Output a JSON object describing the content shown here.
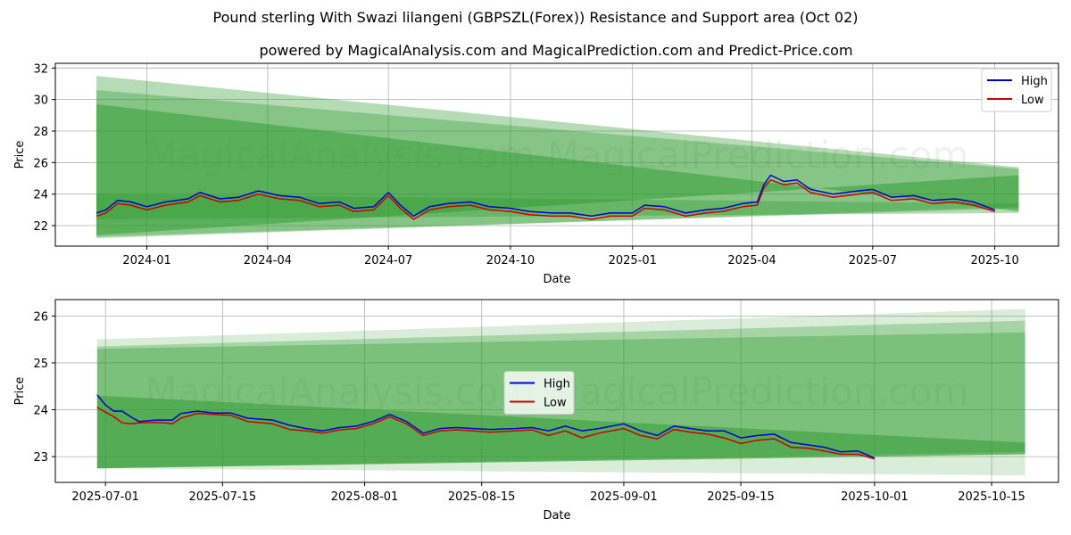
{
  "title_line1": "Pound sterling With Swazi lilangeni (GBPSZL(Forex)) Resistance and Support area (Oct 02)",
  "title_line2": "powered by MagicalAnalysis.com and MagicalPrediction.com and Predict-Price.com",
  "watermark": "MagicalAnalysis.com   MagicalPrediction.com",
  "colors": {
    "high": "#0000cc",
    "low": "#cc0000",
    "band": "#2e9a2e"
  },
  "chart_data": [
    {
      "type": "line",
      "xlabel": "Date",
      "ylabel": "Price",
      "x_ticks": [
        "2024-01",
        "2024-04",
        "2024-07",
        "2024-10",
        "2025-01",
        "2025-04",
        "2025-07",
        "2025-10"
      ],
      "y_ticks": [
        "22",
        "24",
        "26",
        "28",
        "30",
        "32"
      ],
      "ylim": [
        20.7,
        32.3
      ],
      "legend": [
        "High",
        "Low"
      ],
      "legend_position": "top-right",
      "bands": [
        {
          "x_start": "2023-11-24",
          "x_end": "2025-10-19",
          "upper_start": 31.5,
          "upper_end": 25.7,
          "lower_start": 21.2,
          "lower_end": 23.2,
          "opacity": 0.35
        },
        {
          "x_start": "2023-11-24",
          "x_end": "2025-10-19",
          "upper_start": 30.6,
          "upper_end": 25.6,
          "lower_start": 21.3,
          "lower_end": 23.1,
          "opacity": 0.35
        },
        {
          "x_start": "2023-11-24",
          "x_end": "2025-10-19",
          "upper_start": 29.7,
          "upper_end": 22.9,
          "lower_start": 21.4,
          "lower_end": 25.2,
          "opacity": 0.5
        },
        {
          "x_start": "2023-11-24",
          "x_end": "2025-10-19",
          "upper_start": 24.0,
          "upper_end": 23.4,
          "lower_start": 22.4,
          "lower_end": 22.8,
          "opacity": 0.35
        }
      ],
      "series": [
        {
          "name": "High",
          "points": [
            [
              "2023-11-24",
              22.8
            ],
            [
              "2023-12-01",
              23.0
            ],
            [
              "2023-12-10",
              23.6
            ],
            [
              "2023-12-20",
              23.5
            ],
            [
              "2024-01-01",
              23.2
            ],
            [
              "2024-01-15",
              23.5
            ],
            [
              "2024-02-01",
              23.7
            ],
            [
              "2024-02-10",
              24.1
            ],
            [
              "2024-02-25",
              23.7
            ],
            [
              "2024-03-10",
              23.8
            ],
            [
              "2024-03-25",
              24.2
            ],
            [
              "2024-04-10",
              23.9
            ],
            [
              "2024-04-25",
              23.8
            ],
            [
              "2024-05-10",
              23.4
            ],
            [
              "2024-05-25",
              23.5
            ],
            [
              "2024-06-05",
              23.1
            ],
            [
              "2024-06-20",
              23.2
            ],
            [
              "2024-07-01",
              24.1
            ],
            [
              "2024-07-10",
              23.3
            ],
            [
              "2024-07-20",
              22.6
            ],
            [
              "2024-08-01",
              23.2
            ],
            [
              "2024-08-15",
              23.4
            ],
            [
              "2024-09-01",
              23.5
            ],
            [
              "2024-09-15",
              23.2
            ],
            [
              "2024-10-01",
              23.1
            ],
            [
              "2024-10-15",
              22.9
            ],
            [
              "2024-11-01",
              22.8
            ],
            [
              "2024-11-15",
              22.8
            ],
            [
              "2024-12-01",
              22.6
            ],
            [
              "2024-12-15",
              22.8
            ],
            [
              "2025-01-01",
              22.8
            ],
            [
              "2025-01-10",
              23.3
            ],
            [
              "2025-01-25",
              23.2
            ],
            [
              "2025-02-10",
              22.8
            ],
            [
              "2025-02-25",
              23.0
            ],
            [
              "2025-03-10",
              23.1
            ],
            [
              "2025-03-25",
              23.4
            ],
            [
              "2025-04-05",
              23.5
            ],
            [
              "2025-04-10",
              24.6
            ],
            [
              "2025-04-15",
              25.2
            ],
            [
              "2025-04-25",
              24.8
            ],
            [
              "2025-05-05",
              24.9
            ],
            [
              "2025-05-15",
              24.3
            ],
            [
              "2025-06-01",
              24.0
            ],
            [
              "2025-06-20",
              24.2
            ],
            [
              "2025-07-01",
              24.3
            ],
            [
              "2025-07-15",
              23.8
            ],
            [
              "2025-08-01",
              23.9
            ],
            [
              "2025-08-15",
              23.6
            ],
            [
              "2025-09-01",
              23.7
            ],
            [
              "2025-09-15",
              23.5
            ],
            [
              "2025-10-01",
              23.0
            ]
          ]
        },
        {
          "name": "Low",
          "points": [
            [
              "2023-11-24",
              22.6
            ],
            [
              "2023-12-01",
              22.8
            ],
            [
              "2023-12-10",
              23.4
            ],
            [
              "2023-12-20",
              23.3
            ],
            [
              "2024-01-01",
              23.0
            ],
            [
              "2024-01-15",
              23.3
            ],
            [
              "2024-02-01",
              23.5
            ],
            [
              "2024-02-10",
              23.9
            ],
            [
              "2024-02-25",
              23.5
            ],
            [
              "2024-03-10",
              23.6
            ],
            [
              "2024-03-25",
              24.0
            ],
            [
              "2024-04-10",
              23.7
            ],
            [
              "2024-04-25",
              23.6
            ],
            [
              "2024-05-10",
              23.2
            ],
            [
              "2024-05-25",
              23.3
            ],
            [
              "2024-06-05",
              22.9
            ],
            [
              "2024-06-20",
              23.0
            ],
            [
              "2024-07-01",
              23.9
            ],
            [
              "2024-07-10",
              23.1
            ],
            [
              "2024-07-20",
              22.4
            ],
            [
              "2024-08-01",
              23.0
            ],
            [
              "2024-08-15",
              23.2
            ],
            [
              "2024-09-01",
              23.3
            ],
            [
              "2024-09-15",
              23.0
            ],
            [
              "2024-10-01",
              22.9
            ],
            [
              "2024-10-15",
              22.7
            ],
            [
              "2024-11-01",
              22.6
            ],
            [
              "2024-11-15",
              22.6
            ],
            [
              "2024-12-01",
              22.4
            ],
            [
              "2024-12-15",
              22.6
            ],
            [
              "2025-01-01",
              22.6
            ],
            [
              "2025-01-10",
              23.1
            ],
            [
              "2025-01-25",
              23.0
            ],
            [
              "2025-02-10",
              22.6
            ],
            [
              "2025-02-25",
              22.8
            ],
            [
              "2025-03-10",
              22.9
            ],
            [
              "2025-03-25",
              23.2
            ],
            [
              "2025-04-05",
              23.3
            ],
            [
              "2025-04-10",
              24.4
            ],
            [
              "2025-04-15",
              24.9
            ],
            [
              "2025-04-25",
              24.6
            ],
            [
              "2025-05-05",
              24.7
            ],
            [
              "2025-05-15",
              24.1
            ],
            [
              "2025-06-01",
              23.8
            ],
            [
              "2025-06-20",
              24.0
            ],
            [
              "2025-07-01",
              24.1
            ],
            [
              "2025-07-15",
              23.6
            ],
            [
              "2025-08-01",
              23.7
            ],
            [
              "2025-08-15",
              23.4
            ],
            [
              "2025-09-01",
              23.5
            ],
            [
              "2025-09-15",
              23.3
            ],
            [
              "2025-10-01",
              22.9
            ]
          ]
        }
      ]
    },
    {
      "type": "line",
      "xlabel": "Date",
      "ylabel": "Price",
      "x_ticks": [
        "2025-07-01",
        "2025-07-15",
        "2025-08-01",
        "2025-08-15",
        "2025-09-01",
        "2025-09-15",
        "2025-10-01",
        "2025-10-15"
      ],
      "y_ticks": [
        "23",
        "24",
        "25",
        "26"
      ],
      "ylim": [
        22.45,
        26.35
      ],
      "legend": [
        "High",
        "Low"
      ],
      "legend_position": "center",
      "bands": [
        {
          "x_start": "2025-06-30",
          "x_end": "2025-10-19",
          "upper_start": 25.5,
          "upper_end": 26.15,
          "lower_start": 22.75,
          "lower_end": 22.6,
          "opacity": 0.18
        },
        {
          "x_start": "2025-06-30",
          "x_end": "2025-10-19",
          "upper_start": 25.35,
          "upper_end": 25.9,
          "lower_start": 22.75,
          "lower_end": 23.05,
          "opacity": 0.3
        },
        {
          "x_start": "2025-06-30",
          "x_end": "2025-10-19",
          "upper_start": 25.3,
          "upper_end": 25.65,
          "lower_start": 22.75,
          "lower_end": 23.1,
          "opacity": 0.35
        },
        {
          "x_start": "2025-06-30",
          "x_end": "2025-10-19",
          "upper_start": 24.3,
          "upper_end": 23.3,
          "lower_start": 22.75,
          "lower_end": 23.05,
          "opacity": 0.5
        }
      ],
      "series": [
        {
          "name": "High",
          "points": [
            [
              "2025-06-30",
              24.32
            ],
            [
              "2025-07-01",
              24.1
            ],
            [
              "2025-07-02",
              23.97
            ],
            [
              "2025-07-03",
              23.97
            ],
            [
              "2025-07-04",
              23.85
            ],
            [
              "2025-07-05",
              23.75
            ],
            [
              "2025-07-07",
              23.78
            ],
            [
              "2025-07-08",
              23.78
            ],
            [
              "2025-07-09",
              23.78
            ],
            [
              "2025-07-10",
              23.92
            ],
            [
              "2025-07-12",
              23.97
            ],
            [
              "2025-07-14",
              23.93
            ],
            [
              "2025-07-16",
              23.93
            ],
            [
              "2025-07-18",
              23.82
            ],
            [
              "2025-07-21",
              23.78
            ],
            [
              "2025-07-23",
              23.67
            ],
            [
              "2025-07-25",
              23.6
            ],
            [
              "2025-07-27",
              23.55
            ],
            [
              "2025-07-29",
              23.62
            ],
            [
              "2025-07-31",
              23.65
            ],
            [
              "2025-08-02",
              23.75
            ],
            [
              "2025-08-04",
              23.9
            ],
            [
              "2025-08-06",
              23.75
            ],
            [
              "2025-08-08",
              23.5
            ],
            [
              "2025-08-10",
              23.6
            ],
            [
              "2025-08-12",
              23.62
            ],
            [
              "2025-08-14",
              23.6
            ],
            [
              "2025-08-16",
              23.58
            ],
            [
              "2025-08-19",
              23.6
            ],
            [
              "2025-08-21",
              23.62
            ],
            [
              "2025-08-23",
              23.55
            ],
            [
              "2025-08-25",
              23.65
            ],
            [
              "2025-08-27",
              23.55
            ],
            [
              "2025-08-29",
              23.6
            ],
            [
              "2025-09-01",
              23.7
            ],
            [
              "2025-09-03",
              23.55
            ],
            [
              "2025-09-05",
              23.45
            ],
            [
              "2025-09-07",
              23.65
            ],
            [
              "2025-09-09",
              23.6
            ],
            [
              "2025-09-11",
              23.55
            ],
            [
              "2025-09-13",
              23.55
            ],
            [
              "2025-09-15",
              23.4
            ],
            [
              "2025-09-17",
              23.45
            ],
            [
              "2025-09-19",
              23.48
            ],
            [
              "2025-09-21",
              23.3
            ],
            [
              "2025-09-23",
              23.25
            ],
            [
              "2025-09-25",
              23.2
            ],
            [
              "2025-09-27",
              23.1
            ],
            [
              "2025-09-29",
              23.12
            ],
            [
              "2025-10-01",
              22.97
            ]
          ]
        },
        {
          "name": "Low",
          "points": [
            [
              "2025-06-30",
              24.05
            ],
            [
              "2025-07-01",
              23.95
            ],
            [
              "2025-07-02",
              23.85
            ],
            [
              "2025-07-03",
              23.72
            ],
            [
              "2025-07-04",
              23.7
            ],
            [
              "2025-07-05",
              23.72
            ],
            [
              "2025-07-07",
              23.73
            ],
            [
              "2025-07-08",
              23.72
            ],
            [
              "2025-07-09",
              23.7
            ],
            [
              "2025-07-10",
              23.82
            ],
            [
              "2025-07-12",
              23.92
            ],
            [
              "2025-07-14",
              23.9
            ],
            [
              "2025-07-16",
              23.88
            ],
            [
              "2025-07-18",
              23.75
            ],
            [
              "2025-07-21",
              23.7
            ],
            [
              "2025-07-23",
              23.58
            ],
            [
              "2025-07-25",
              23.55
            ],
            [
              "2025-07-27",
              23.5
            ],
            [
              "2025-07-29",
              23.57
            ],
            [
              "2025-07-31",
              23.6
            ],
            [
              "2025-08-02",
              23.7
            ],
            [
              "2025-08-04",
              23.85
            ],
            [
              "2025-08-06",
              23.7
            ],
            [
              "2025-08-08",
              23.45
            ],
            [
              "2025-08-10",
              23.55
            ],
            [
              "2025-08-12",
              23.57
            ],
            [
              "2025-08-14",
              23.55
            ],
            [
              "2025-08-16",
              23.52
            ],
            [
              "2025-08-19",
              23.55
            ],
            [
              "2025-08-21",
              23.57
            ],
            [
              "2025-08-23",
              23.45
            ],
            [
              "2025-08-25",
              23.55
            ],
            [
              "2025-08-27",
              23.4
            ],
            [
              "2025-08-29",
              23.5
            ],
            [
              "2025-09-01",
              23.6
            ],
            [
              "2025-09-03",
              23.45
            ],
            [
              "2025-09-05",
              23.38
            ],
            [
              "2025-09-07",
              23.58
            ],
            [
              "2025-09-09",
              23.52
            ],
            [
              "2025-09-11",
              23.48
            ],
            [
              "2025-09-13",
              23.4
            ],
            [
              "2025-09-15",
              23.28
            ],
            [
              "2025-09-17",
              23.35
            ],
            [
              "2025-09-19",
              23.38
            ],
            [
              "2025-09-21",
              23.2
            ],
            [
              "2025-09-23",
              23.18
            ],
            [
              "2025-09-25",
              23.12
            ],
            [
              "2025-09-27",
              23.05
            ],
            [
              "2025-09-29",
              23.05
            ],
            [
              "2025-10-01",
              22.95
            ]
          ]
        }
      ]
    }
  ]
}
